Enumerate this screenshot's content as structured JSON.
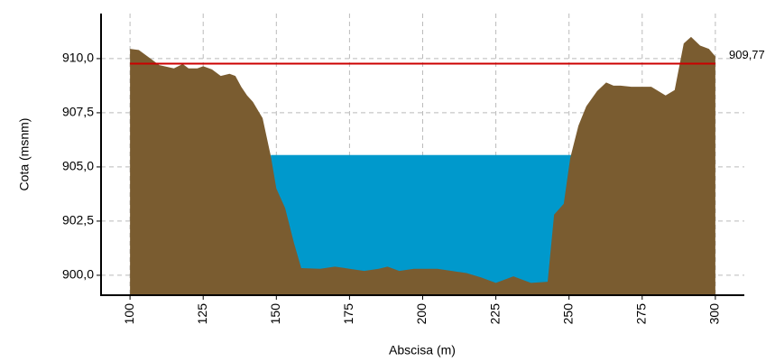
{
  "chart_data": {
    "type": "area",
    "xlabel": "Abscisa (m)",
    "ylabel": "Cota (msnm)",
    "xlim": [
      90.1,
      309.9
    ],
    "ylim": [
      899.08,
      912.08
    ],
    "xticks": [
      100,
      125,
      150,
      175,
      200,
      225,
      250,
      275,
      300
    ],
    "yticks": [
      {
        "value": 900,
        "label": "900,0"
      },
      {
        "value": 902.5,
        "label": "902,5"
      },
      {
        "value": 905,
        "label": "905,0"
      },
      {
        "value": 907.5,
        "label": "907,5"
      },
      {
        "value": 910,
        "label": "910,0"
      }
    ],
    "grid": true,
    "profile": {
      "color": "#7a5c30",
      "x": [
        100,
        103,
        106,
        110,
        115,
        118,
        120,
        123,
        125,
        128,
        131,
        134,
        136,
        138,
        140,
        142,
        145.3,
        148.1,
        150,
        153,
        156,
        158.5,
        165,
        170,
        175,
        180,
        185,
        188,
        192,
        197,
        205,
        210,
        215,
        220,
        225,
        231,
        237,
        242.7,
        244.9,
        248.2,
        250.4,
        253.2,
        255.9,
        259.6,
        262.7,
        265.2,
        267.6,
        271.3,
        278.1,
        283,
        286.1,
        289.2,
        291.7,
        294.8,
        297.8,
        300
      ],
      "values": [
        910.45,
        910.4,
        910.1,
        909.7,
        909.55,
        909.75,
        909.55,
        909.55,
        909.65,
        909.5,
        909.2,
        909.3,
        909.2,
        908.7,
        908.3,
        908.0,
        907.25,
        905.5,
        904.0,
        903.1,
        901.5,
        900.33,
        900.3,
        900.4,
        900.3,
        900.2,
        900.3,
        900.4,
        900.2,
        900.3,
        900.3,
        900.2,
        900.1,
        899.9,
        899.65,
        899.95,
        899.65,
        899.7,
        902.8,
        903.3,
        905.4,
        906.9,
        907.8,
        908.5,
        908.9,
        908.75,
        908.75,
        908.7,
        908.7,
        908.3,
        908.55,
        910.7,
        911.0,
        910.6,
        910.45,
        910.1
      ]
    },
    "water": {
      "color": "#0099cc",
      "x": [
        148.1,
        250.7
      ],
      "level": 905.55
    },
    "reference": {
      "color": "#cc0000",
      "value": 909.77,
      "label": "909,77"
    }
  }
}
